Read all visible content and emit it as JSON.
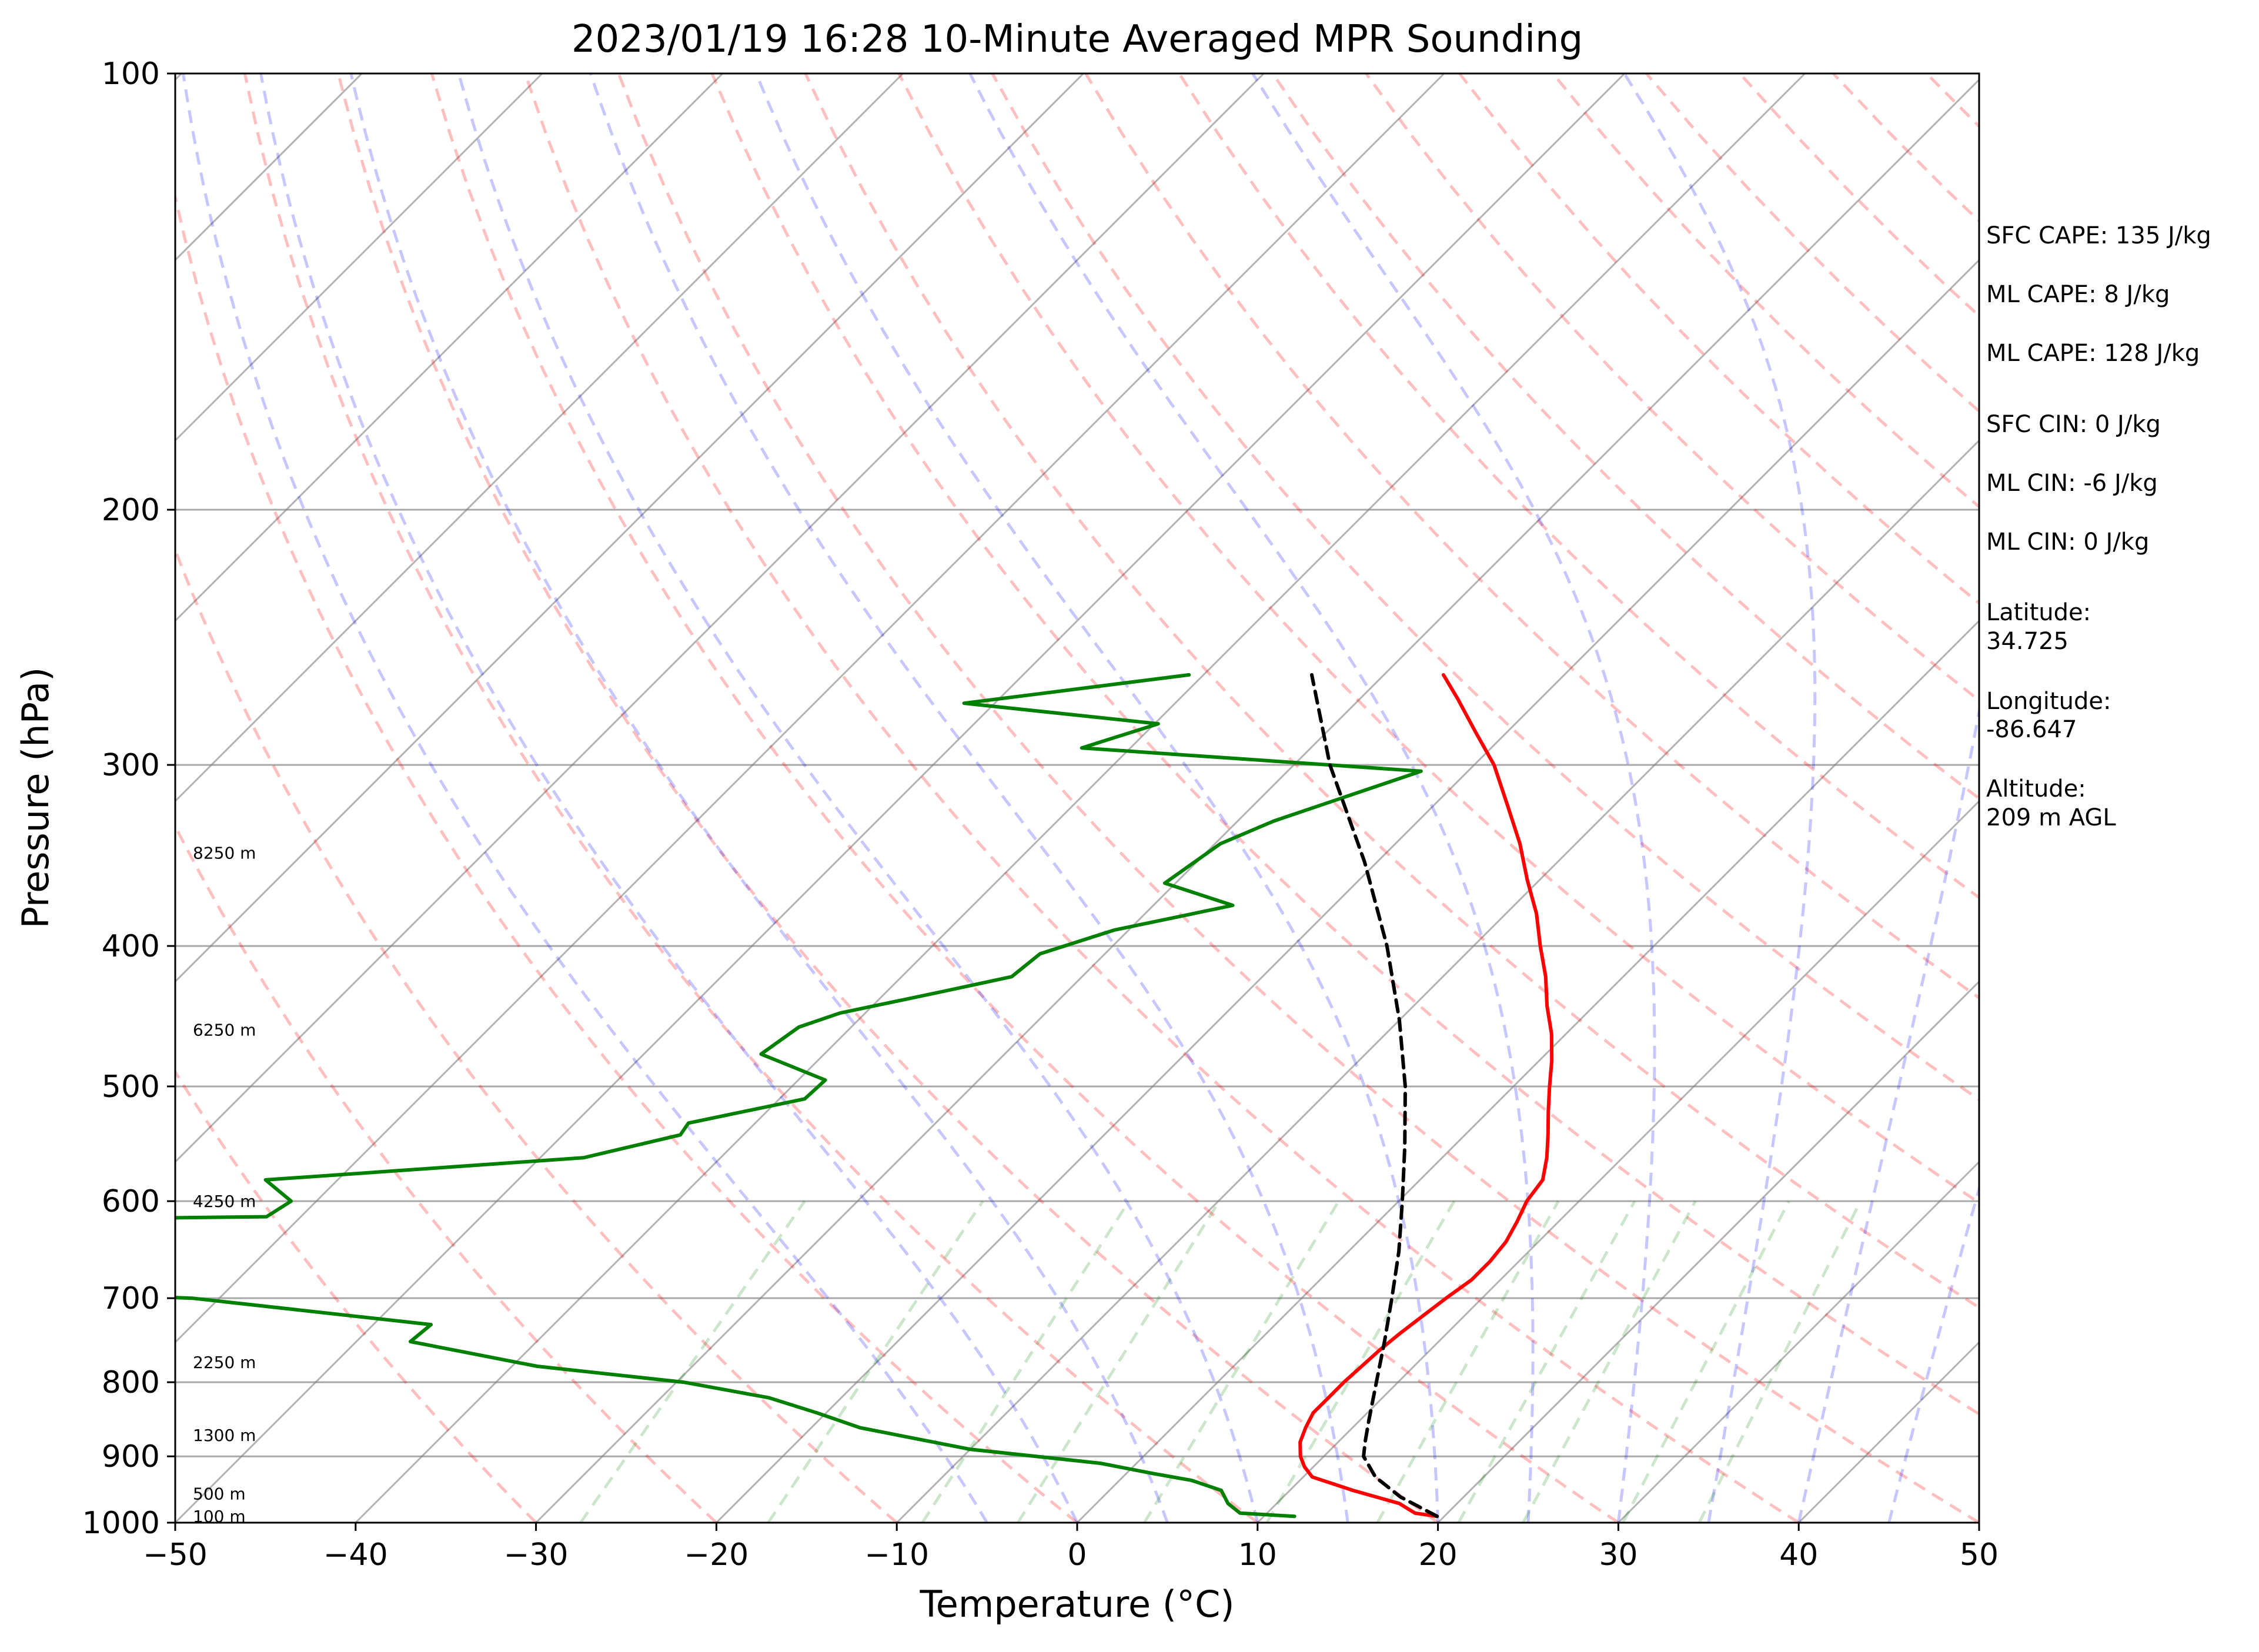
{
  "chart_data": {
    "type": "line",
    "title": "2023/01/19 16:28 10-Minute Averaged MPR Sounding",
    "xlabel": "Temperature (°C)",
    "ylabel": "Pressure (hPa)",
    "xlim": [
      -50,
      50
    ],
    "ylim": [
      1000,
      100
    ],
    "y_scale": "log",
    "x_ticks": [
      -50,
      -40,
      -30,
      -20,
      -10,
      0,
      10,
      20,
      30,
      40,
      50
    ],
    "x_tick_labels": [
      "−50",
      "−40",
      "−30",
      "−20",
      "−10",
      "0",
      "10",
      "20",
      "30",
      "40",
      "50"
    ],
    "y_ticks": [
      100,
      200,
      300,
      400,
      500,
      600,
      700,
      800,
      900,
      1000
    ],
    "y_tick_labels": [
      "100",
      "200",
      "300",
      "400",
      "500",
      "600",
      "700",
      "800",
      "900",
      "1000"
    ],
    "grid": true,
    "skew_degrees": 45,
    "series": [
      {
        "type": "temperature",
        "color": "#ff0000",
        "points": [
          {
            "p": 990,
            "t": 19.6
          },
          {
            "p": 985,
            "t": 18.2
          },
          {
            "p": 970,
            "t": 16.8
          },
          {
            "p": 950,
            "t": 13.5
          },
          {
            "p": 930,
            "t": 10.5
          },
          {
            "p": 915,
            "t": 9.5
          },
          {
            "p": 900,
            "t": 8.7
          },
          {
            "p": 880,
            "t": 7.9
          },
          {
            "p": 860,
            "t": 7.4
          },
          {
            "p": 840,
            "t": 7.0
          },
          {
            "p": 820,
            "t": 7.0
          },
          {
            "p": 800,
            "t": 7.0
          },
          {
            "p": 780,
            "t": 7.1
          },
          {
            "p": 760,
            "t": 7.2
          },
          {
            "p": 740,
            "t": 7.4
          },
          {
            "p": 720,
            "t": 7.7
          },
          {
            "p": 700,
            "t": 8.0
          },
          {
            "p": 680,
            "t": 8.4
          },
          {
            "p": 660,
            "t": 8.4
          },
          {
            "p": 640,
            "t": 8.2
          },
          {
            "p": 620,
            "t": 7.7
          },
          {
            "p": 600,
            "t": 7.1
          },
          {
            "p": 580,
            "t": 6.8
          },
          {
            "p": 560,
            "t": 5.8
          },
          {
            "p": 540,
            "t": 4.6
          },
          {
            "p": 520,
            "t": 3.3
          },
          {
            "p": 500,
            "t": 2.0
          },
          {
            "p": 480,
            "t": 0.7
          },
          {
            "p": 460,
            "t": -0.8
          },
          {
            "p": 440,
            "t": -2.6
          },
          {
            "p": 420,
            "t": -4.3
          },
          {
            "p": 400,
            "t": -6.3
          },
          {
            "p": 380,
            "t": -8.3
          },
          {
            "p": 360,
            "t": -10.7
          },
          {
            "p": 340,
            "t": -13.1
          },
          {
            "p": 320,
            "t": -15.9
          },
          {
            "p": 300,
            "t": -18.9
          },
          {
            "p": 285,
            "t": -21.7
          },
          {
            "p": 270,
            "t": -24.6
          },
          {
            "p": 260,
            "t": -26.7
          }
        ]
      },
      {
        "type": "dewpoint",
        "color": "#008000",
        "points": [
          {
            "p": 990,
            "t": 11.7
          },
          {
            "p": 985,
            "t": 8.5
          },
          {
            "p": 970,
            "t": 7.3
          },
          {
            "p": 950,
            "t": 6.2
          },
          {
            "p": 935,
            "t": 4.0
          },
          {
            "p": 925,
            "t": 1.5
          },
          {
            "p": 910,
            "t": -2.0
          },
          {
            "p": 890,
            "t": -10.0
          },
          {
            "p": 860,
            "t": -17.3
          },
          {
            "p": 840,
            "t": -20.5
          },
          {
            "p": 820,
            "t": -24.0
          },
          {
            "p": 800,
            "t": -29.6
          },
          {
            "p": 780,
            "t": -38.6
          },
          {
            "p": 750,
            "t": -47.0
          },
          {
            "p": 730,
            "t": -46.8
          },
          {
            "p": 700,
            "t": -61.5
          },
          {
            "p": 680,
            "t": -88.7
          },
          {
            "p": 665,
            "t": -79.5
          },
          {
            "p": 660,
            "t": -86.6
          },
          {
            "p": 620,
            "t": -86.7
          },
          {
            "p": 615,
            "t": -61.9
          },
          {
            "p": 600,
            "t": -61.4
          },
          {
            "p": 580,
            "t": -64.0
          },
          {
            "p": 560,
            "t": -47.6
          },
          {
            "p": 540,
            "t": -43.5
          },
          {
            "p": 530,
            "t": -43.7
          },
          {
            "p": 510,
            "t": -38.6
          },
          {
            "p": 495,
            "t": -38.5
          },
          {
            "p": 475,
            "t": -43.5
          },
          {
            "p": 455,
            "t": -42.9
          },
          {
            "p": 445,
            "t": -41.4
          },
          {
            "p": 430,
            "t": -36.9
          },
          {
            "p": 420,
            "t": -33.9
          },
          {
            "p": 405,
            "t": -33.6
          },
          {
            "p": 390,
            "t": -30.8
          },
          {
            "p": 375,
            "t": -25.6
          },
          {
            "p": 362,
            "t": -30.6
          },
          {
            "p": 340,
            "t": -29.7
          },
          {
            "p": 328,
            "t": -28.0
          },
          {
            "p": 303,
            "t": -22.6
          },
          {
            "p": 292,
            "t": -42.7
          },
          {
            "p": 281,
            "t": -39.8
          },
          {
            "p": 272,
            "t": -51.7
          },
          {
            "p": 260,
            "t": -40.8
          }
        ]
      },
      {
        "type": "parcel",
        "color": "#000000",
        "points": [
          {
            "p": 990,
            "t": 19.6
          },
          {
            "p": 960,
            "t": 16.5
          },
          {
            "p": 930,
            "t": 14.0
          },
          {
            "p": 900,
            "t": 12.2
          },
          {
            "p": 880,
            "t": 11.5
          },
          {
            "p": 850,
            "t": 10.5
          },
          {
            "p": 800,
            "t": 8.8
          },
          {
            "p": 750,
            "t": 7.0
          },
          {
            "p": 700,
            "t": 5.0
          },
          {
            "p": 650,
            "t": 2.8
          },
          {
            "p": 600,
            "t": 0.2
          },
          {
            "p": 550,
            "t": -2.7
          },
          {
            "p": 500,
            "t": -6.0
          },
          {
            "p": 450,
            "t": -10.0
          },
          {
            "p": 400,
            "t": -14.8
          },
          {
            "p": 350,
            "t": -20.7
          },
          {
            "p": 300,
            "t": -28.0
          },
          {
            "p": 260,
            "t": -34.0
          }
        ]
      }
    ],
    "altitude_labels": [
      {
        "label": "100 m",
        "p": 990
      },
      {
        "label": "500 m",
        "p": 955
      },
      {
        "label": "1300 m",
        "p": 870
      },
      {
        "label": "2250 m",
        "p": 775
      },
      {
        "label": "4250 m",
        "p": 600
      },
      {
        "label": "6250 m",
        "p": 457
      },
      {
        "label": "8250 m",
        "p": 345
      }
    ],
    "stats": [
      "SFC CAPE: 135 J/kg",
      "ML CAPE: 8 J/kg",
      "ML CAPE: 128 J/kg",
      "SFC CIN: 0 J/kg",
      "ML CIN: -6 J/kg",
      "ML CIN: 0 J/kg"
    ],
    "location": {
      "latitude_label": "Latitude:",
      "latitude": "34.725",
      "longitude_label": "Longitude:",
      "longitude": "-86.647",
      "altitude_label": "Altitude:",
      "altitude": "209 m AGL"
    },
    "colors": {
      "temperature": "#ff0000",
      "dewpoint": "#008000",
      "parcel": "#000000",
      "dry_adiabats": "#ff0000",
      "moist_adiabats": "#0000ff",
      "mixing_ratio": "#008000",
      "isotherms": "#808080"
    }
  }
}
